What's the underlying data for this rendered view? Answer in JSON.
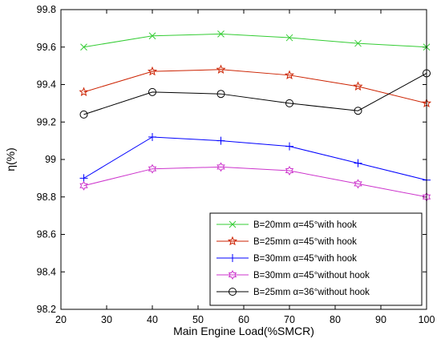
{
  "chart_data": {
    "type": "line",
    "xlabel": "Main Engine Load(%SMCR)",
    "ylabel": "η(%)",
    "xlim": [
      20,
      100
    ],
    "ylim": [
      98.2,
      99.8
    ],
    "xticks": [
      "20",
      "30",
      "40",
      "50",
      "60",
      "70",
      "80",
      "90",
      "100"
    ],
    "yticks": [
      "98.2",
      "98.4",
      "98.6",
      "98.8",
      "99",
      "99.2",
      "99.4",
      "99.6",
      "99.8"
    ],
    "grid": false,
    "legend_position": "bottom-right",
    "x": [
      25,
      40,
      55,
      70,
      85,
      100
    ],
    "series": [
      {
        "name": "B=20mm α=45°with hook",
        "color": "#33cc33",
        "marker": "x",
        "values": [
          99.6,
          99.66,
          99.67,
          99.65,
          99.62,
          99.6
        ]
      },
      {
        "name": "B=25mm α=45°with hook",
        "color": "#cc2200",
        "marker": "star",
        "values": [
          99.36,
          99.47,
          99.48,
          99.45,
          99.39,
          99.3
        ]
      },
      {
        "name": "B=30mm α=45°with hook",
        "color": "#0000ff",
        "marker": "plus",
        "values": [
          98.9,
          99.12,
          99.1,
          99.07,
          98.98,
          98.89
        ]
      },
      {
        "name": "B=30mm α=45°without hook",
        "color": "#cc33cc",
        "marker": "hexagram",
        "values": [
          98.86,
          98.95,
          98.96,
          98.94,
          98.87,
          98.8
        ]
      },
      {
        "name": "B=25mm α=36°without hook",
        "color": "#000000",
        "marker": "circle",
        "values": [
          99.24,
          99.36,
          99.35,
          99.3,
          99.26,
          99.46
        ]
      }
    ]
  }
}
